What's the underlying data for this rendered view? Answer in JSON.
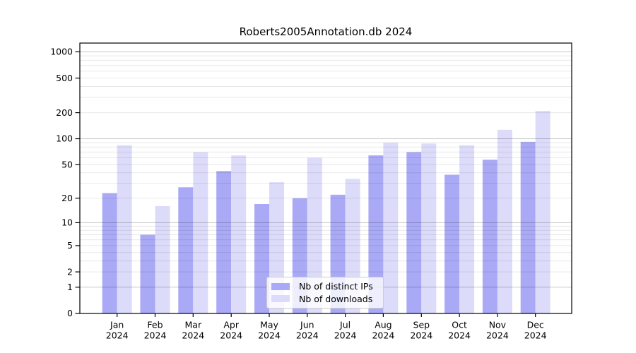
{
  "figure": {
    "background": "#ffffff"
  },
  "chart_data": {
    "type": "bar",
    "title": "Roberts2005Annotation.db 2024",
    "year_label": "2024",
    "categories": [
      "Jan",
      "Feb",
      "Mar",
      "Apr",
      "May",
      "Jun",
      "Jul",
      "Aug",
      "Sep",
      "Oct",
      "Nov",
      "Dec"
    ],
    "series": [
      {
        "name": "Nb of distinct IPs",
        "color": "#a9a9f5",
        "values": [
          23,
          7,
          27,
          42,
          17,
          20,
          22,
          64,
          70,
          38,
          57,
          92
        ]
      },
      {
        "name": "Nb of downloads",
        "color": "#dcdcfa",
        "values": [
          84,
          16,
          70,
          64,
          31,
          60,
          34,
          90,
          88,
          84,
          127,
          210
        ]
      }
    ],
    "yticks": [
      0,
      1,
      2,
      5,
      10,
      20,
      50,
      100,
      200,
      500,
      1000
    ],
    "yscale": "log10(1+x)",
    "ylim": [
      0,
      1236
    ],
    "grid": "both",
    "grid_major_values": [
      1,
      10,
      100,
      1000
    ],
    "grid_minor_values": [
      2,
      3,
      4,
      5,
      6,
      7,
      8,
      9,
      20,
      30,
      40,
      50,
      60,
      70,
      80,
      90,
      200,
      300,
      400,
      500,
      600,
      700,
      800,
      900
    ],
    "legend_position": "lower-center",
    "axis_color": "#000000",
    "text_color": "#000000"
  }
}
